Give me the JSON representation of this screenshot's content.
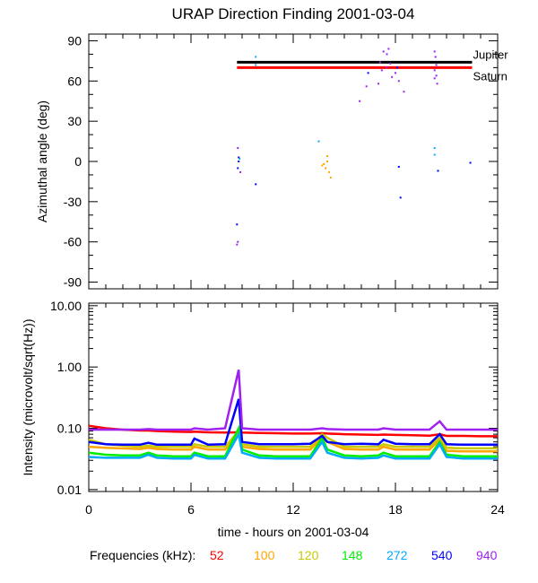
{
  "chart_data": [
    {
      "type": "scatter",
      "title": "URAP Direction Finding  2001-03-04",
      "xlabel": "",
      "ylabel": "Azimuthal angle (deg)",
      "xlim": [
        0,
        24
      ],
      "ylim": [
        -95,
        95
      ],
      "yticks": [
        "90",
        "60",
        "30",
        "0",
        "-30",
        "-60",
        "-90"
      ],
      "ytick_values": [
        90,
        60,
        30,
        0,
        -30,
        -60,
        -90
      ],
      "reference_lines": [
        {
          "name": "Jupiter",
          "value": 74,
          "x_range": [
            8.7,
            22.5
          ],
          "color": "#000000"
        },
        {
          "name": "Saturn",
          "value": 70,
          "x_range": [
            8.7,
            22.5
          ],
          "color": "#ff0000"
        }
      ],
      "points": [
        [
          8.75,
          10,
          "940"
        ],
        [
          8.75,
          -60,
          "940"
        ],
        [
          8.7,
          -62,
          "940"
        ],
        [
          8.8,
          3,
          "540"
        ],
        [
          8.8,
          0,
          "540"
        ],
        [
          8.75,
          -5,
          "540"
        ],
        [
          8.85,
          2,
          "272"
        ],
        [
          8.7,
          -47,
          "540"
        ],
        [
          8.9,
          -8,
          "940"
        ],
        [
          9.8,
          78,
          "272"
        ],
        [
          9.8,
          72,
          "272"
        ],
        [
          9.8,
          -17,
          "540"
        ],
        [
          13.5,
          15,
          "272"
        ],
        [
          13.8,
          -2,
          "100"
        ],
        [
          13.9,
          -5,
          "100"
        ],
        [
          14.0,
          4,
          "100"
        ],
        [
          14.1,
          -8,
          "100"
        ],
        [
          14.2,
          -12,
          "100"
        ],
        [
          13.7,
          -3,
          "100"
        ],
        [
          14.0,
          0,
          "100"
        ],
        [
          15.9,
          45,
          "940"
        ],
        [
          16.3,
          56,
          "940"
        ],
        [
          16.4,
          66,
          "540"
        ],
        [
          17.0,
          58,
          "940"
        ],
        [
          17.1,
          74,
          "940"
        ],
        [
          17.3,
          82,
          "940"
        ],
        [
          17.5,
          80,
          "940"
        ],
        [
          17.2,
          68,
          "940"
        ],
        [
          17.5,
          70,
          "940"
        ],
        [
          17.7,
          73,
          "940"
        ],
        [
          17.8,
          63,
          "940"
        ],
        [
          18.0,
          66,
          "940"
        ],
        [
          18.2,
          60,
          "940"
        ],
        [
          18.5,
          52,
          "940"
        ],
        [
          17.6,
          84,
          "940"
        ],
        [
          18.1,
          70,
          "540"
        ],
        [
          18.2,
          -4,
          "540"
        ],
        [
          18.3,
          -27,
          "540"
        ],
        [
          20.3,
          82,
          "940"
        ],
        [
          20.35,
          78,
          "940"
        ],
        [
          20.4,
          72,
          "940"
        ],
        [
          20.3,
          68,
          "940"
        ],
        [
          20.4,
          64,
          "940"
        ],
        [
          20.45,
          58,
          "940"
        ],
        [
          20.3,
          62,
          "940"
        ],
        [
          20.3,
          10,
          "272"
        ],
        [
          20.3,
          5,
          "272"
        ],
        [
          20.5,
          -7,
          "540"
        ],
        [
          22.4,
          -1,
          "540"
        ]
      ]
    },
    {
      "type": "line",
      "title": "",
      "xlabel": "time - hours on 2001-03-04",
      "ylabel": "Intensity (microvolt/sqrt(Hz))",
      "xlim": [
        0,
        24
      ],
      "ylim": [
        0.0093,
        11
      ],
      "yscale": "log",
      "yticks": [
        "10.00",
        "1.00",
        "0.10",
        "0.01"
      ],
      "ytick_values": [
        10,
        1,
        0.1,
        0.01
      ],
      "xticks": [
        "0",
        "6",
        "12",
        "18",
        "24"
      ],
      "xtick_values": [
        0,
        6,
        12,
        18,
        24
      ],
      "x": [
        0,
        1,
        2,
        3,
        3.5,
        4,
        5,
        6,
        6.2,
        7,
        8,
        8.8,
        9,
        10,
        11,
        12,
        13,
        13.7,
        14,
        15,
        16,
        17,
        17.3,
        18,
        19,
        20,
        20.6,
        21,
        22,
        23,
        24
      ],
      "series": [
        {
          "name": "52",
          "color": "#ff0000",
          "values": [
            0.11,
            0.1,
            0.095,
            0.092,
            0.092,
            0.09,
            0.088,
            0.087,
            0.088,
            0.086,
            0.085,
            0.086,
            0.085,
            0.084,
            0.083,
            0.082,
            0.082,
            0.083,
            0.082,
            0.08,
            0.079,
            0.078,
            0.079,
            0.078,
            0.077,
            0.076,
            0.08,
            0.075,
            0.075,
            0.074,
            0.074
          ]
        },
        {
          "name": "100",
          "color": "#ffa500",
          "values": [
            0.05,
            0.048,
            0.047,
            0.046,
            0.048,
            0.046,
            0.045,
            0.045,
            0.05,
            0.045,
            0.045,
            0.08,
            0.05,
            0.046,
            0.045,
            0.045,
            0.045,
            0.07,
            0.06,
            0.046,
            0.045,
            0.045,
            0.05,
            0.045,
            0.045,
            0.045,
            0.065,
            0.043,
            0.042,
            0.042,
            0.042
          ]
        },
        {
          "name": "120",
          "color": "#c8c800",
          "values": [
            0.065,
            0.055,
            0.052,
            0.05,
            0.052,
            0.05,
            0.05,
            0.05,
            0.055,
            0.05,
            0.05,
            0.09,
            0.055,
            0.05,
            0.05,
            0.05,
            0.05,
            0.08,
            0.07,
            0.05,
            0.05,
            0.05,
            0.055,
            0.05,
            0.05,
            0.05,
            0.07,
            0.048,
            0.047,
            0.047,
            0.047
          ]
        },
        {
          "name": "148",
          "color": "#00ee00",
          "values": [
            0.04,
            0.037,
            0.036,
            0.036,
            0.04,
            0.036,
            0.035,
            0.035,
            0.04,
            0.035,
            0.035,
            0.1,
            0.045,
            0.036,
            0.035,
            0.035,
            0.035,
            0.07,
            0.045,
            0.036,
            0.035,
            0.036,
            0.04,
            0.035,
            0.035,
            0.035,
            0.06,
            0.037,
            0.035,
            0.035,
            0.035
          ]
        },
        {
          "name": "272",
          "color": "#00aaff",
          "values": [
            0.034,
            0.033,
            0.033,
            0.033,
            0.037,
            0.033,
            0.032,
            0.032,
            0.037,
            0.032,
            0.032,
            0.08,
            0.04,
            0.033,
            0.032,
            0.032,
            0.032,
            0.06,
            0.04,
            0.033,
            0.032,
            0.033,
            0.036,
            0.032,
            0.032,
            0.032,
            0.055,
            0.034,
            0.032,
            0.032,
            0.032
          ]
        },
        {
          "name": "540",
          "color": "#0000ff",
          "values": [
            0.06,
            0.055,
            0.054,
            0.054,
            0.058,
            0.054,
            0.054,
            0.054,
            0.068,
            0.054,
            0.055,
            0.3,
            0.06,
            0.055,
            0.055,
            0.055,
            0.056,
            0.075,
            0.06,
            0.055,
            0.056,
            0.055,
            0.065,
            0.056,
            0.055,
            0.055,
            0.08,
            0.055,
            0.054,
            0.054,
            0.054
          ]
        },
        {
          "name": "940",
          "color": "#a020f0",
          "values": [
            0.095,
            0.095,
            0.095,
            0.095,
            0.097,
            0.095,
            0.095,
            0.095,
            0.1,
            0.095,
            0.1,
            0.9,
            0.1,
            0.095,
            0.095,
            0.095,
            0.095,
            0.1,
            0.097,
            0.095,
            0.095,
            0.095,
            0.1,
            0.095,
            0.095,
            0.095,
            0.13,
            0.095,
            0.095,
            0.095,
            0.095
          ]
        }
      ]
    }
  ],
  "legend": {
    "label": "Frequencies (kHz):",
    "items": [
      {
        "name": "52",
        "color": "#ff0000"
      },
      {
        "name": "100",
        "color": "#ffa500"
      },
      {
        "name": "120",
        "color": "#c8c800"
      },
      {
        "name": "148",
        "color": "#00ee00"
      },
      {
        "name": "272",
        "color": "#00aaff"
      },
      {
        "name": "540",
        "color": "#0000ff"
      },
      {
        "name": "940",
        "color": "#a020f0"
      }
    ]
  }
}
